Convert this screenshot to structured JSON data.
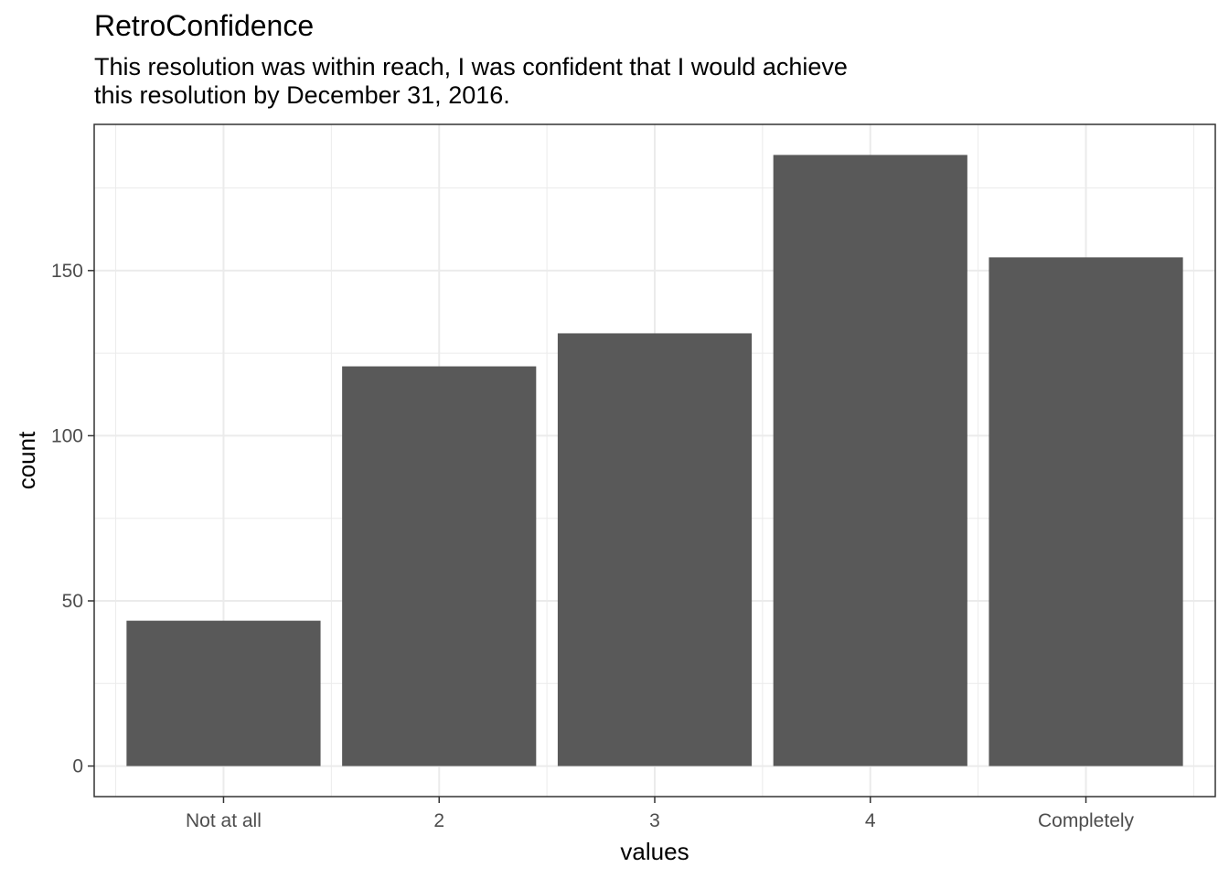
{
  "chart_data": {
    "type": "bar",
    "title": "RetroConfidence",
    "subtitle_lines": [
      "This resolution was within reach, I was confident that I would achieve",
      "this resolution by December 31, 2016."
    ],
    "xlabel": "values",
    "ylabel": "count",
    "categories": [
      "Not at all",
      "2",
      "3",
      "4",
      "Completely"
    ],
    "values": [
      44,
      121,
      131,
      185,
      154
    ],
    "yticks": [
      0,
      50,
      100,
      150
    ],
    "ylim": [
      -9.25,
      194.25
    ],
    "grid": true,
    "bar_color": "#595959",
    "grid_color": "#ebebeb",
    "panel_border_color": "#333333"
  }
}
